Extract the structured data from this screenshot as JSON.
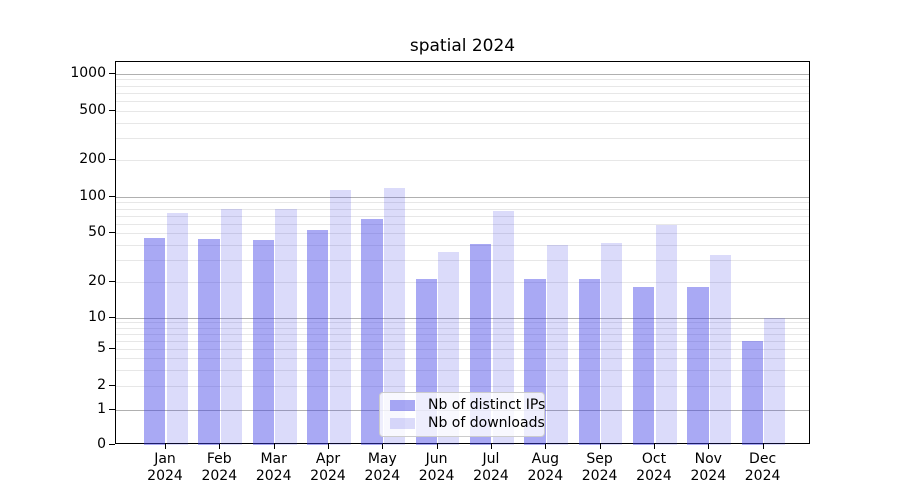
{
  "window": {
    "title": "spatial 2024"
  },
  "chart_data": {
    "type": "bar",
    "title": "spatial 2024",
    "categories": [
      "Jan 2024",
      "Feb 2024",
      "Mar 2024",
      "Apr 2024",
      "May 2024",
      "Jun 2024",
      "Jul 2024",
      "Aug 2024",
      "Sep 2024",
      "Oct 2024",
      "Nov 2024",
      "Dec 2024"
    ],
    "series": [
      {
        "name": "Nb of distinct IPs",
        "color": "rgba(64,64,231,0.45)",
        "values": [
          46,
          45,
          44,
          53,
          65,
          21,
          41,
          21,
          21,
          18,
          18,
          6
        ]
      },
      {
        "name": "Nb of downloads",
        "color": "rgba(64,64,231,0.19)",
        "values": [
          73,
          79,
          79,
          114,
          119,
          35,
          77,
          40,
          42,
          59,
          33,
          10
        ]
      }
    ],
    "y_axis": {
      "scale": "symlog",
      "tick_values": [
        0,
        1,
        2,
        5,
        10,
        20,
        50,
        100,
        200,
        500,
        1000
      ],
      "minor_gridline_values": [
        2,
        3,
        4,
        5,
        6,
        7,
        8,
        9,
        20,
        30,
        40,
        50,
        60,
        70,
        80,
        90,
        200,
        300,
        400,
        500,
        600,
        700,
        800,
        900
      ],
      "major_gridline_values": [
        1,
        10,
        100,
        1000
      ]
    },
    "x_axis": {
      "label_lines_per_tick": 2
    },
    "grid": "on",
    "legend_position": "lower center"
  },
  "colors": {
    "bar_base": "#4040e7",
    "major_grid": "#b0b0b0",
    "minor_grid": "#e7e7e7",
    "axis_line": "#000000",
    "text": "#000000",
    "legend_bg": "rgba(255,255,255,0.8)",
    "legend_border": "#cccccc"
  }
}
